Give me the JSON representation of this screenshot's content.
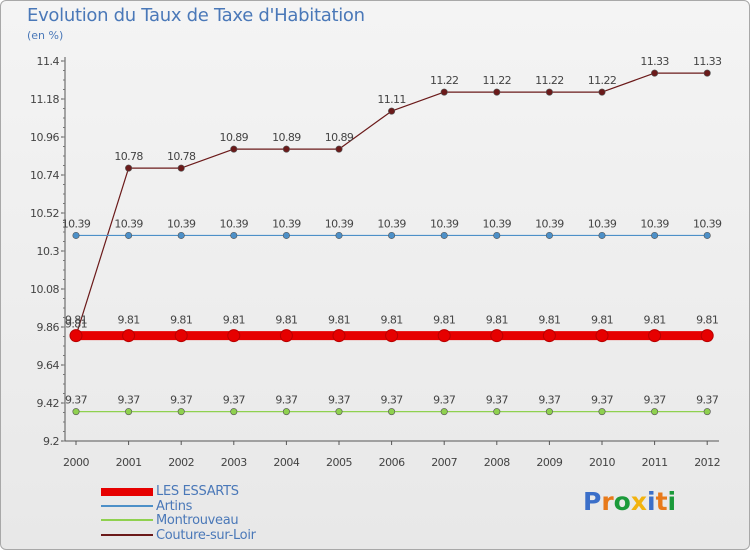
{
  "title": "Evolution du Taux de Taxe d'Habitation",
  "subtitle": "(en %)",
  "logo": {
    "letters": [
      "P",
      "r",
      "o",
      "x",
      "i",
      "t",
      "i"
    ],
    "colors": [
      "#3b6fc9",
      "#e87a1a",
      "#1b9a3a",
      "#f2b30f",
      "#3b6fc9",
      "#e87a1a",
      "#1b9a3a"
    ]
  },
  "chart_data": {
    "type": "line",
    "title": "Evolution du Taux de Taxe d'Habitation",
    "ylabel": "(en %)",
    "xlabel": "",
    "ylim": [
      9.2,
      11.4
    ],
    "yticks": [
      "9.2",
      "9.42",
      "9.64",
      "9.86",
      "10.08",
      "10.3",
      "10.52",
      "10.74",
      "10.96",
      "11.18",
      "11.4"
    ],
    "categories": [
      "2000",
      "2001",
      "2002",
      "2003",
      "2004",
      "2005",
      "2006",
      "2007",
      "2008",
      "2009",
      "2010",
      "2011",
      "2012"
    ],
    "series": [
      {
        "name": "Couture-sur-Loir",
        "color": "#6b1a1a",
        "values": [
          9.81,
          10.78,
          10.78,
          10.89,
          10.89,
          10.89,
          11.11,
          11.22,
          11.22,
          11.22,
          11.22,
          11.33,
          11.33
        ],
        "labels": [
          "9.81",
          "10.78",
          "10.78",
          "10.89",
          "10.89",
          "10.89",
          "11.11",
          "11.22",
          "11.22",
          "11.22",
          "11.22",
          "11.33",
          "11.33"
        ]
      },
      {
        "name": "Artins",
        "color": "#4d90c8",
        "values": [
          10.39,
          10.39,
          10.39,
          10.39,
          10.39,
          10.39,
          10.39,
          10.39,
          10.39,
          10.39,
          10.39,
          10.39,
          10.39
        ],
        "labels": [
          "10.39",
          "10.39",
          "10.39",
          "10.39",
          "10.39",
          "10.39",
          "10.39",
          "10.39",
          "10.39",
          "10.39",
          "10.39",
          "10.39",
          "10.39"
        ]
      },
      {
        "name": "LES ESSARTS",
        "color": "#e60000",
        "values": [
          9.81,
          9.81,
          9.81,
          9.81,
          9.81,
          9.81,
          9.81,
          9.81,
          9.81,
          9.81,
          9.81,
          9.81,
          9.81
        ],
        "labels": [
          "9.81",
          "9.81",
          "9.81",
          "9.81",
          "9.81",
          "9.81",
          "9.81",
          "9.81",
          "9.81",
          "9.81",
          "9.81",
          "9.81",
          "9.81"
        ]
      },
      {
        "name": "Montrouveau",
        "color": "#8fd14f",
        "values": [
          9.37,
          9.37,
          9.37,
          9.37,
          9.37,
          9.37,
          9.37,
          9.37,
          9.37,
          9.37,
          9.37,
          9.37,
          9.37
        ],
        "labels": [
          "9.37",
          "9.37",
          "9.37",
          "9.37",
          "9.37",
          "9.37",
          "9.37",
          "9.37",
          "9.37",
          "9.37",
          "9.37",
          "9.37",
          "9.37"
        ]
      }
    ],
    "legend": [
      "LES ESSARTS",
      "Artins",
      "Montrouveau",
      "Couture-sur-Loir"
    ],
    "legend_position": "bottom-left"
  }
}
